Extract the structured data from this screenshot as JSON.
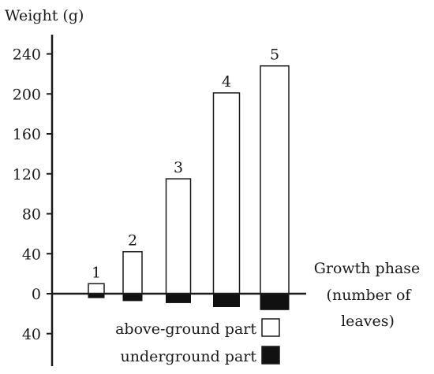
{
  "chart_data": {
    "type": "bar",
    "ylabel": "Weight (g)",
    "xlabel": "Growth phase (number of leaves)",
    "xlabel_lines": [
      "Growth phase",
      "(number of",
      "leaves)"
    ],
    "ylim": [
      -40,
      240
    ],
    "yticks": [
      240,
      200,
      160,
      120,
      80,
      40,
      0,
      -40
    ],
    "ytick_labels": [
      "240",
      "200",
      "160",
      "120",
      "80",
      "40",
      "0",
      "40"
    ],
    "categories": [
      "1",
      "2",
      "3",
      "4",
      "5"
    ],
    "series": [
      {
        "name": "above-ground part",
        "values": [
          10,
          42,
          115,
          201,
          228
        ],
        "color": "#ffffff"
      },
      {
        "name": "underground part",
        "values": [
          -4,
          -7,
          -9,
          -13,
          -16
        ],
        "color": "#111111"
      }
    ],
    "legend_position": "bottom-right",
    "grid": false
  }
}
